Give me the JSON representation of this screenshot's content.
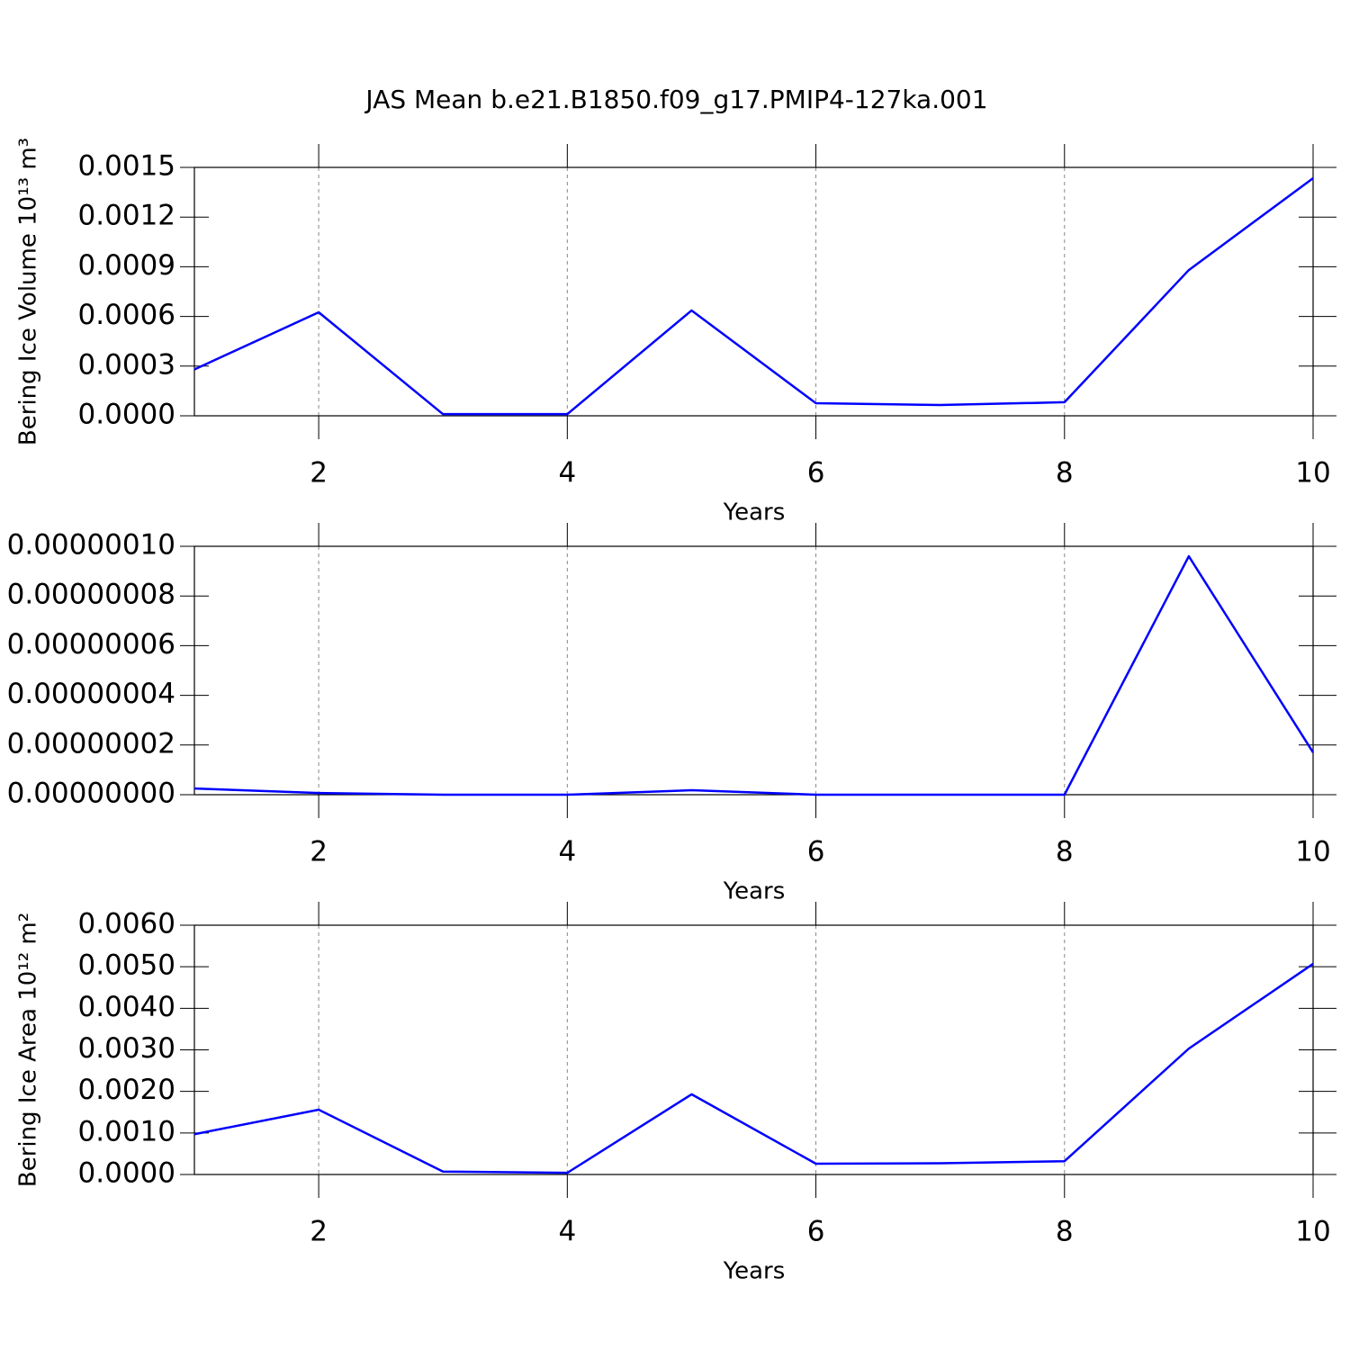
{
  "title": "JAS Mean b.e21.B1850.f09_g17.PMIP4-127ka.001",
  "chart_data": [
    {
      "type": "line",
      "x": [
        1,
        2,
        3,
        4,
        5,
        6,
        7,
        8,
        9,
        10
      ],
      "values": [
        0.00028,
        0.000625,
        1e-05,
        1e-05,
        0.000636,
        7.6e-05,
        6.5e-05,
        8.2e-05,
        0.00088,
        0.001435
      ],
      "color": "#0000ff",
      "xlim": [
        1,
        10
      ],
      "xticks": [
        2,
        4,
        6,
        8,
        10
      ],
      "xlabel": "Years",
      "ylabel": "Bering Ice Volume 10¹³ m³",
      "ylim": [
        0,
        0.0015
      ],
      "yticks": [
        {
          "value": 0,
          "label": "0.0000"
        },
        0.0003,
        0.0006,
        0.0009,
        0.0012,
        0.0015
      ],
      "grid": "x"
    },
    {
      "type": "line",
      "x": [
        1,
        2,
        3,
        4,
        5,
        6,
        7,
        8,
        9,
        10
      ],
      "values": [
        2.5e-09,
        7e-10,
        0,
        0,
        1.8e-09,
        0,
        0,
        0,
        9.6e-08,
        1.7e-08
      ],
      "color": "#0000ff",
      "xlim": [
        1,
        10
      ],
      "xticks": [
        2,
        4,
        6,
        8,
        10
      ],
      "xlabel": "Years",
      "ylim": [
        0,
        1e-07
      ],
      "yticks": [
        {
          "value": 0,
          "label": "0.00000000"
        },
        {
          "value": 2e-08,
          "label": "0.00000002"
        },
        {
          "value": 4e-08,
          "label": "0.00000004"
        },
        {
          "value": 6e-08,
          "label": "0.00000006"
        },
        {
          "value": 8e-08,
          "label": "0.00000008"
        },
        {
          "value": 1e-07,
          "label": "0.00000010"
        }
      ],
      "grid": "x"
    },
    {
      "type": "line",
      "x": [
        1,
        2,
        3,
        4,
        5,
        6,
        7,
        8,
        9,
        10
      ],
      "values": [
        0.00097,
        0.00156,
        7e-05,
        4e-05,
        0.00193,
        0.00026,
        0.00027,
        0.00032,
        0.00303,
        0.00507
      ],
      "color": "#0000ff",
      "xlim": [
        1,
        10
      ],
      "xticks": [
        2,
        4,
        6,
        8,
        10
      ],
      "xlabel": "Years",
      "ylabel": "Bering Ice Area 10¹² m²",
      "ylim": [
        0,
        0.006
      ],
      "yticks": [
        {
          "value": 0,
          "label": "0.0000"
        },
        {
          "value": 0.001,
          "label": "0.0010"
        },
        {
          "value": 0.002,
          "label": "0.0020"
        },
        {
          "value": 0.003,
          "label": "0.0030"
        },
        {
          "value": 0.004,
          "label": "0.0040"
        },
        {
          "value": 0.005,
          "label": "0.0050"
        },
        {
          "value": 0.006,
          "label": "0.0060"
        }
      ],
      "grid": "x"
    }
  ]
}
